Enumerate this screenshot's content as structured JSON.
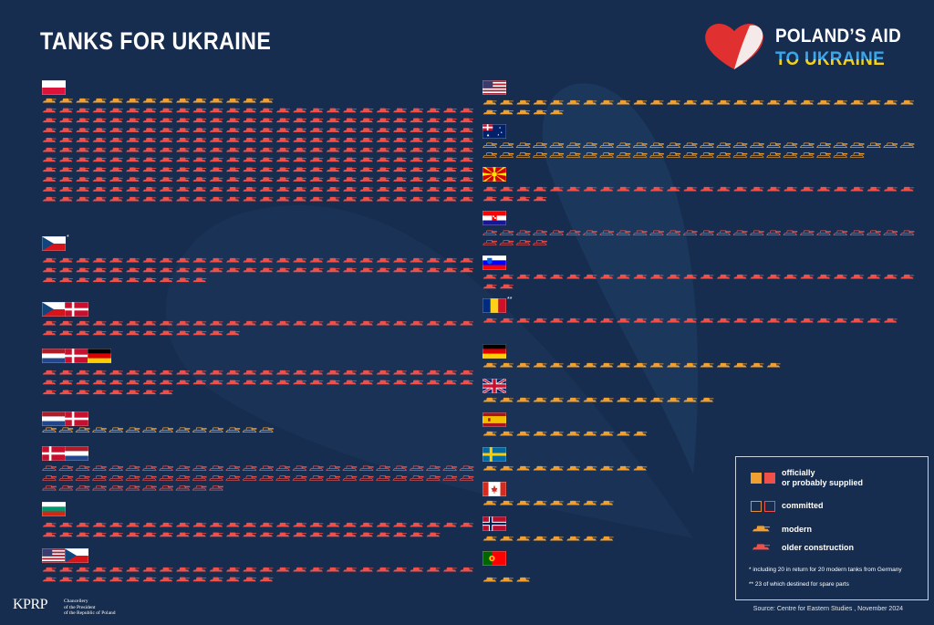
{
  "title": "TANKS FOR UKRAINE",
  "logo": {
    "line1": "POLAND’S AID",
    "line2": "TO UKRAINE"
  },
  "legend": {
    "supplied": "officially\nor probably supplied",
    "committed": "committed",
    "modern": "modern",
    "older": "older construction",
    "note1": "*  including 20 in return for 20 modern tanks from Germany",
    "note2": "** 23 of which destined for spare parts"
  },
  "source": "Source: Centre for Eastern Studies , November 2024",
  "footer": {
    "logo": "KPRP",
    "sub1": "Chancellery",
    "sub2": "of the President",
    "sub3": "of the Republic of Poland"
  },
  "colors": {
    "background": "#162d4f",
    "modern": "#f0a030",
    "older": "#f0504a",
    "committed_outline": "#e0903a"
  },
  "chart_data": {
    "type": "pictogram",
    "title": "TANKS FOR UKRAINE",
    "unit": "one icon = one tank",
    "groups": [
      {
        "donors": [
          "Poland"
        ],
        "rows": [
          {
            "kind": "modern",
            "status": "supplied",
            "count": 14
          },
          {
            "kind": "older",
            "status": "supplied",
            "count": 260
          }
        ]
      },
      {
        "donors": [
          "Czech Republic"
        ],
        "mark": "*",
        "rows": [
          {
            "kind": "older",
            "status": "supplied",
            "count": 62
          }
        ]
      },
      {
        "donors": [
          "Czech Republic",
          "Denmark"
        ],
        "rows": [
          {
            "kind": "older",
            "status": "supplied",
            "count": 38
          }
        ]
      },
      {
        "donors": [
          "Netherlands",
          "Denmark",
          "Germany"
        ],
        "rows": [
          {
            "kind": "older",
            "status": "supplied",
            "count": 60
          }
        ]
      },
      {
        "donors": [
          "Netherlands",
          "Denmark"
        ],
        "rows": [
          {
            "kind": "modern",
            "status": "committed",
            "count": 14
          }
        ]
      },
      {
        "donors": [
          "Denmark",
          "Netherlands"
        ],
        "rows": [
          {
            "kind": "older",
            "status": "committed",
            "count": 63
          }
        ]
      },
      {
        "donors": [
          "Bulgaria"
        ],
        "rows": [
          {
            "kind": "older",
            "status": "supplied",
            "count": 50
          }
        ]
      },
      {
        "donors": [
          "United States",
          "Czech Republic"
        ],
        "rows": [
          {
            "kind": "older",
            "status": "supplied",
            "count": 40
          }
        ]
      },
      {
        "donors": [
          "United States"
        ],
        "rows": [
          {
            "kind": "modern",
            "status": "supplied",
            "count": 31
          }
        ]
      },
      {
        "donors": [
          "Australia"
        ],
        "rows": [
          {
            "kind": "modern",
            "status": "committed",
            "count": 49
          }
        ]
      },
      {
        "donors": [
          "North Macedonia"
        ],
        "rows": [
          {
            "kind": "older",
            "status": "supplied",
            "count": 30
          }
        ]
      },
      {
        "donors": [
          "Croatia"
        ],
        "rows": [
          {
            "kind": "older",
            "status": "committed",
            "count": 30
          }
        ]
      },
      {
        "donors": [
          "Slovenia"
        ],
        "rows": [
          {
            "kind": "older",
            "status": "supplied",
            "count": 28
          }
        ]
      },
      {
        "donors": [
          "Romania"
        ],
        "mark": "**",
        "rows": [
          {
            "kind": "older",
            "status": "supplied",
            "count": 25
          }
        ]
      },
      {
        "donors": [
          "Germany"
        ],
        "rows": [
          {
            "kind": "modern",
            "status": "supplied",
            "count": 18
          }
        ]
      },
      {
        "donors": [
          "United Kingdom"
        ],
        "rows": [
          {
            "kind": "modern",
            "status": "supplied",
            "count": 14
          }
        ]
      },
      {
        "donors": [
          "Spain"
        ],
        "rows": [
          {
            "kind": "modern",
            "status": "supplied",
            "count": 10
          }
        ]
      },
      {
        "donors": [
          "Sweden"
        ],
        "rows": [
          {
            "kind": "modern",
            "status": "supplied",
            "count": 10
          }
        ]
      },
      {
        "donors": [
          "Canada"
        ],
        "rows": [
          {
            "kind": "modern",
            "status": "supplied",
            "count": 8
          }
        ]
      },
      {
        "donors": [
          "Norway"
        ],
        "rows": [
          {
            "kind": "modern",
            "status": "supplied",
            "count": 8
          }
        ]
      },
      {
        "donors": [
          "Portugal"
        ],
        "rows": [
          {
            "kind": "modern",
            "status": "supplied",
            "count": 3
          }
        ]
      }
    ]
  }
}
